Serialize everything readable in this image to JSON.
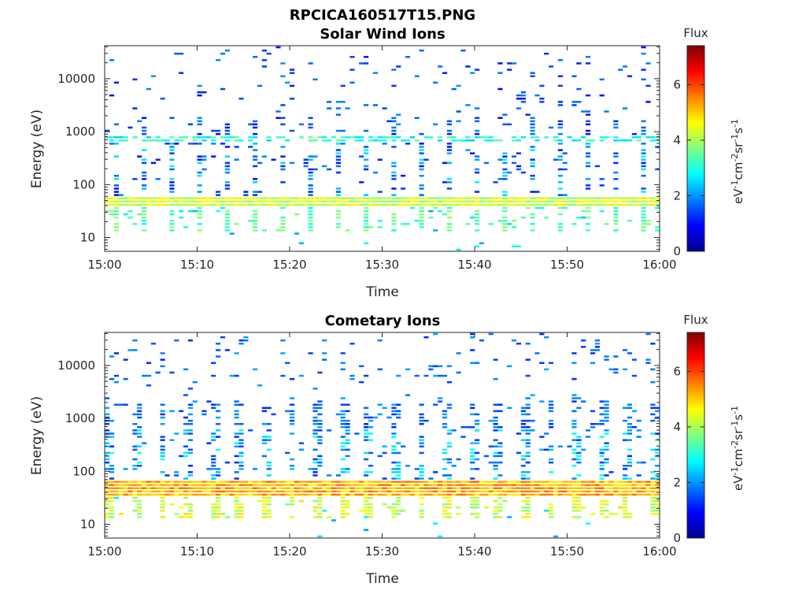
{
  "figure_title": "RPCICA160517T15.PNG",
  "chart_data": [
    {
      "type": "heatmap",
      "title": "Solar Wind Ions",
      "xlabel": "Time",
      "ylabel": "Energy (eV)",
      "x_range": [
        "15:00",
        "16:00"
      ],
      "x_ticks": [
        "15:00",
        "15:10",
        "15:20",
        "15:30",
        "15:40",
        "15:50",
        "16:00"
      ],
      "y_scale": "log",
      "ylim": [
        5.5,
        42000
      ],
      "y_ticks": [
        10,
        100,
        1000,
        10000
      ],
      "y_tick_labels": [
        "10",
        "100",
        "1000",
        "10000"
      ],
      "colorbar": {
        "label": "Flux",
        "units": "eV-1cm-2sr-1s-1",
        "range": [
          0,
          7.4
        ],
        "ticks": [
          0,
          2,
          4,
          6
        ]
      },
      "features": {
        "dense_band_ev": [
          38,
          62
        ],
        "dense_band_level": 4.3,
        "secondary_band_ev": [
          650,
          820
        ],
        "secondary_band_level": 3.0,
        "background_level": 1.0
      }
    },
    {
      "type": "heatmap",
      "title": "Cometary Ions",
      "xlabel": "Time",
      "ylabel": "Energy (eV)",
      "x_range": [
        "15:00",
        "16:00"
      ],
      "x_ticks": [
        "15:00",
        "15:10",
        "15:20",
        "15:30",
        "15:40",
        "15:50",
        "16:00"
      ],
      "y_scale": "log",
      "ylim": [
        5.5,
        42000
      ],
      "y_ticks": [
        10,
        100,
        1000,
        10000
      ],
      "y_tick_labels": [
        "10",
        "100",
        "1000",
        "10000"
      ],
      "colorbar": {
        "label": "Flux",
        "units": "eV-1cm-2sr-1s-1",
        "range": [
          0,
          7.4
        ],
        "ticks": [
          0,
          2,
          4,
          6
        ]
      },
      "features": {
        "dense_band_ev": [
          33,
          66
        ],
        "dense_band_level": 5.2,
        "burst_period_min": 2.8,
        "background_level": 1.2
      }
    }
  ]
}
